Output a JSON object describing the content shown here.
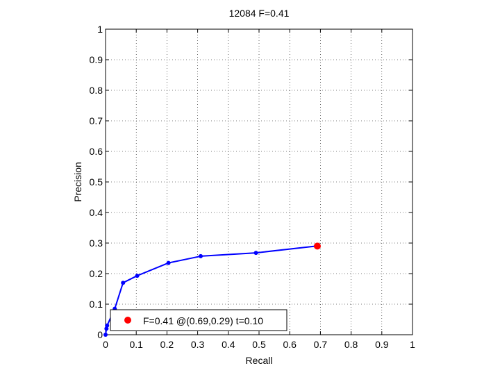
{
  "chart_data": {
    "type": "line",
    "title": "12084 F=0.41",
    "xlabel": "Recall",
    "ylabel": "Precision",
    "xlim": [
      0,
      1
    ],
    "ylim": [
      0,
      1
    ],
    "grid": true,
    "x_ticks": [
      "0",
      "0.1",
      "0.2",
      "0.3",
      "0.4",
      "0.5",
      "0.6",
      "0.7",
      "0.8",
      "0.9",
      "1"
    ],
    "y_ticks": [
      "0",
      "0.1",
      "0.2",
      "0.3",
      "0.4",
      "0.5",
      "0.6",
      "0.7",
      "0.8",
      "0.9",
      "1"
    ],
    "series": [
      {
        "color": "#0000ff",
        "marker": "dot",
        "points": [
          {
            "x": 0.0,
            "y": 0.0
          },
          {
            "x": 0.003,
            "y": 0.02
          },
          {
            "x": 0.005,
            "y": 0.03
          },
          {
            "x": 0.03,
            "y": 0.085
          },
          {
            "x": 0.057,
            "y": 0.17
          },
          {
            "x": 0.103,
            "y": 0.193
          },
          {
            "x": 0.205,
            "y": 0.235
          },
          {
            "x": 0.31,
            "y": 0.257
          },
          {
            "x": 0.49,
            "y": 0.268
          },
          {
            "x": 0.686,
            "y": 0.29
          }
        ]
      }
    ],
    "highlight_point": {
      "x": 0.69,
      "y": 0.29,
      "color": "#ff0000"
    },
    "legend": {
      "position": "bottom-left",
      "entries": [
        {
          "label": "F=0.41 @(0.69,0.29) t=0.10",
          "color": "#ff0000",
          "marker": "dot"
        }
      ]
    }
  }
}
